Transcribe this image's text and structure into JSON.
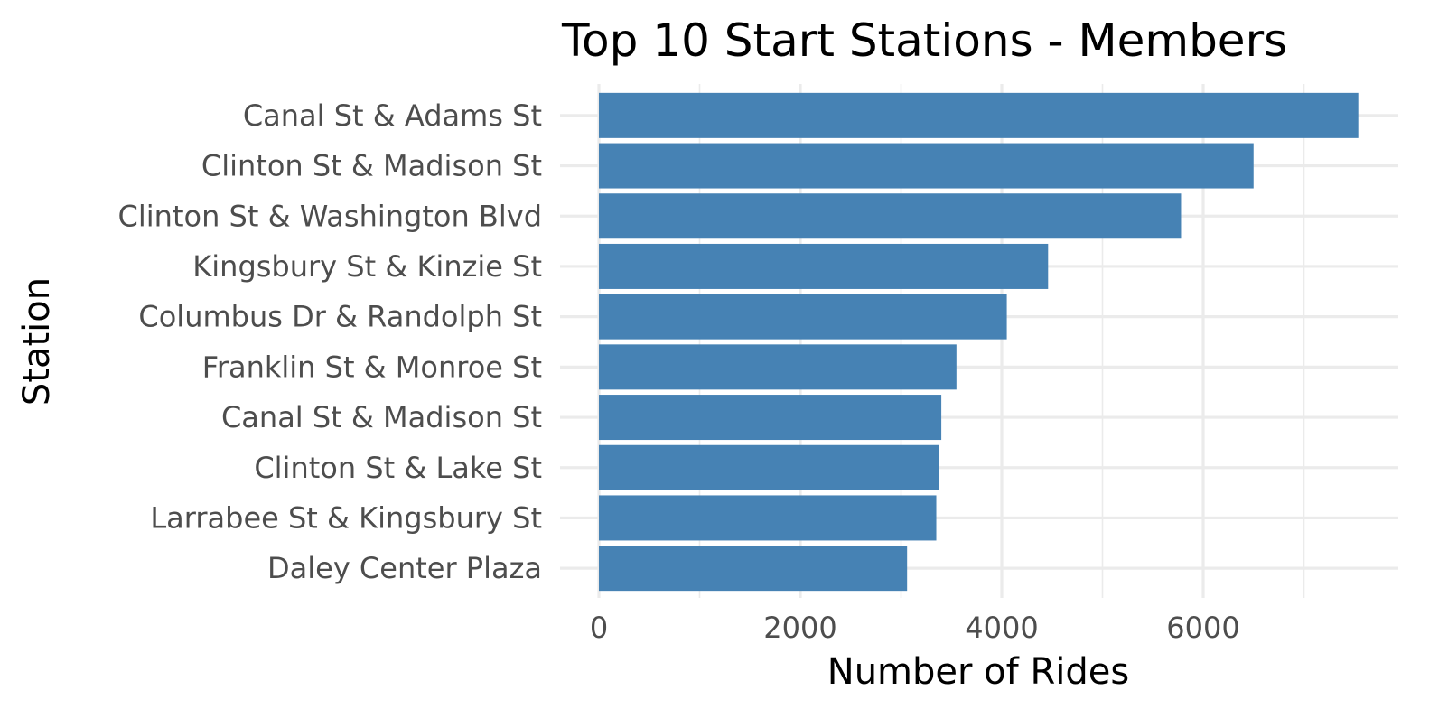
{
  "chart_data": {
    "type": "bar",
    "orientation": "horizontal",
    "title": "Top 10 Start Stations - Members",
    "xlabel": "Number of Rides",
    "ylabel": "Station",
    "categories": [
      "Canal St & Adams St",
      "Clinton St & Madison St",
      "Clinton St & Washington Blvd",
      "Kingsbury St & Kinzie St",
      "Columbus Dr & Randolph St",
      "Franklin St & Monroe St",
      "Canal St & Madison St",
      "Clinton St & Lake St",
      "Larrabee St & Kingsbury St",
      "Daley Center Plaza"
    ],
    "values": [
      7540,
      6500,
      5780,
      4460,
      4050,
      3550,
      3400,
      3380,
      3350,
      3060
    ],
    "xlim": [
      0,
      7900
    ],
    "xticks": [
      0,
      2000,
      4000,
      6000
    ],
    "grid": true,
    "bar_color": "#4682b4"
  }
}
